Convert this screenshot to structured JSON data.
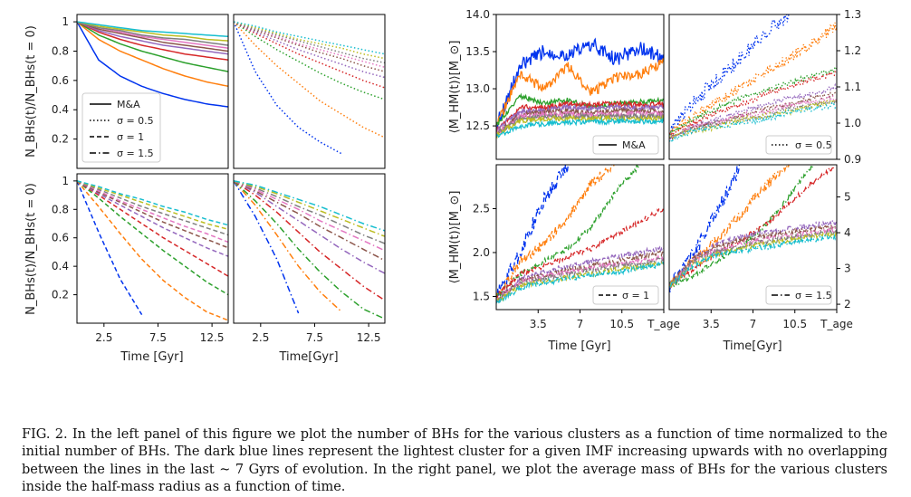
{
  "caption": "FIG. 2. In the left panel of this figure we plot the number of BHs for the various clusters as a function of time normalized to the initial number of BHs. The dark blue lines represent the lightest cluster for a given IMF increasing upwards with no overlapping between the lines in the last ~ 7 Gyrs of evolution. In the right panel, we plot the average mass of BHs for the various clusters inside the half-mass radius as a function of time.",
  "colors": [
    "#0033ee",
    "#ff7f0e",
    "#2ca02c",
    "#d62728",
    "#9467bd",
    "#8c564b",
    "#e377c2",
    "#7f7f7f",
    "#bcbd22",
    "#17becf"
  ],
  "legend": {
    "ma": "M&A",
    "s05": "σ = 0.5",
    "s1": "σ = 1",
    "s15": "σ = 1.5"
  },
  "left_labels": {
    "ylabel_top": "N_BHs(t)/N_BHs(t = 0)",
    "ylabel_bottom": "N_BHs(t)/N_BHs(t = 0)",
    "xlabel_left": "Time [Gyr]",
    "xlabel_right": "Time[Gyr]",
    "yticks": [
      "1",
      "0.8",
      "0.6",
      "0.4",
      "0.2"
    ],
    "xticks": [
      "2.5",
      "7.5",
      "12.5"
    ]
  },
  "right_labels": {
    "ylabel_top": "⟨M_HM(t)⟩[M_⊙]",
    "ylabel_bottom": "⟨M_HM(t)⟩[M_⊙]",
    "xlabel_left": "Time [Gyr]",
    "xlabel_right": "Time[Gyr]",
    "xticks": [
      "3.5",
      "7",
      "10.5",
      "T_age"
    ],
    "yticks_top_left": [
      "14.0",
      "13.5",
      "13.0",
      "12.5"
    ],
    "yticks_top_right": [
      "1.3",
      "1.2",
      "1.1",
      "1.0",
      "0.9"
    ],
    "yticks_bottom_left": [
      "2.5",
      "2.0",
      "1.5"
    ],
    "yticks_bottom_right": [
      "5",
      "4",
      "3",
      "2"
    ]
  },
  "chart_data": [
    {
      "type": "line",
      "panel": "left-top-left",
      "label": "M&A",
      "xlim": [
        0,
        14
      ],
      "ylim": [
        0,
        1.05
      ],
      "x": [
        0,
        2,
        4,
        6,
        8,
        10,
        12,
        14
      ],
      "series": [
        {
          "values": [
            1,
            0.74,
            0.63,
            0.56,
            0.51,
            0.47,
            0.44,
            0.42
          ]
        },
        {
          "values": [
            1,
            0.88,
            0.8,
            0.74,
            0.68,
            0.63,
            0.59,
            0.56
          ]
        },
        {
          "values": [
            1,
            0.91,
            0.85,
            0.8,
            0.76,
            0.72,
            0.69,
            0.66
          ]
        },
        {
          "values": [
            1,
            0.93,
            0.88,
            0.84,
            0.81,
            0.78,
            0.76,
            0.74
          ]
        },
        {
          "values": [
            1,
            0.94,
            0.9,
            0.87,
            0.84,
            0.82,
            0.8,
            0.78
          ]
        },
        {
          "values": [
            1,
            0.95,
            0.92,
            0.89,
            0.86,
            0.84,
            0.82,
            0.8
          ]
        },
        {
          "values": [
            1,
            0.96,
            0.93,
            0.9,
            0.88,
            0.86,
            0.84,
            0.82
          ]
        },
        {
          "values": [
            1,
            0.96,
            0.94,
            0.91,
            0.89,
            0.88,
            0.86,
            0.84
          ]
        },
        {
          "values": [
            1,
            0.97,
            0.95,
            0.93,
            0.91,
            0.9,
            0.88,
            0.87
          ]
        },
        {
          "values": [
            1,
            0.98,
            0.96,
            0.94,
            0.93,
            0.92,
            0.91,
            0.9
          ]
        }
      ]
    },
    {
      "type": "line",
      "panel": "left-top-right",
      "label": "σ = 0.5",
      "xlim": [
        0,
        14
      ],
      "ylim": [
        0,
        1.05
      ],
      "x": [
        0,
        2,
        4,
        6,
        8,
        10,
        12,
        14
      ],
      "series": [
        {
          "values": [
            1,
            0.66,
            0.43,
            0.28,
            0.18,
            0.1,
            null,
            null
          ]
        },
        {
          "values": [
            1,
            0.84,
            0.7,
            0.58,
            0.46,
            0.37,
            0.28,
            0.21
          ]
        },
        {
          "values": [
            1,
            0.9,
            0.81,
            0.73,
            0.65,
            0.58,
            0.52,
            0.47
          ]
        },
        {
          "values": [
            1,
            0.92,
            0.85,
            0.78,
            0.72,
            0.66,
            0.6,
            0.55
          ]
        },
        {
          "values": [
            1,
            0.93,
            0.87,
            0.81,
            0.76,
            0.71,
            0.66,
            0.62
          ]
        },
        {
          "values": [
            1,
            0.94,
            0.89,
            0.84,
            0.79,
            0.75,
            0.7,
            0.66
          ]
        },
        {
          "values": [
            1,
            0.95,
            0.9,
            0.85,
            0.81,
            0.77,
            0.73,
            0.69
          ]
        },
        {
          "values": [
            1,
            0.95,
            0.91,
            0.87,
            0.83,
            0.79,
            0.75,
            0.72
          ]
        },
        {
          "values": [
            1,
            0.96,
            0.92,
            0.88,
            0.85,
            0.82,
            0.78,
            0.75
          ]
        },
        {
          "values": [
            1,
            0.97,
            0.93,
            0.9,
            0.87,
            0.84,
            0.81,
            0.78
          ]
        }
      ]
    },
    {
      "type": "line",
      "panel": "left-bottom-left",
      "label": "σ = 1",
      "xlim": [
        0,
        14
      ],
      "ylim": [
        0,
        1.05
      ],
      "x": [
        0,
        2,
        4,
        6,
        8,
        10,
        12,
        14
      ],
      "series": [
        {
          "values": [
            1,
            0.64,
            0.31,
            0.06,
            null,
            null,
            null,
            null
          ]
        },
        {
          "values": [
            1,
            0.82,
            0.63,
            0.45,
            0.3,
            0.18,
            0.08,
            0.02
          ]
        },
        {
          "values": [
            1,
            0.88,
            0.75,
            0.63,
            0.51,
            0.4,
            0.29,
            0.2
          ]
        },
        {
          "values": [
            1,
            0.9,
            0.8,
            0.7,
            0.6,
            0.51,
            0.42,
            0.33
          ]
        },
        {
          "values": [
            1,
            0.91,
            0.83,
            0.75,
            0.67,
            0.6,
            0.53,
            0.47
          ]
        },
        {
          "values": [
            1,
            0.92,
            0.85,
            0.78,
            0.71,
            0.65,
            0.59,
            0.53
          ]
        },
        {
          "values": [
            1,
            0.93,
            0.86,
            0.8,
            0.74,
            0.68,
            0.63,
            0.57
          ]
        },
        {
          "values": [
            1,
            0.94,
            0.88,
            0.82,
            0.77,
            0.72,
            0.67,
            0.62
          ]
        },
        {
          "values": [
            1,
            0.95,
            0.9,
            0.85,
            0.8,
            0.75,
            0.7,
            0.66
          ]
        },
        {
          "values": [
            1,
            0.96,
            0.91,
            0.87,
            0.82,
            0.78,
            0.73,
            0.69
          ]
        }
      ]
    },
    {
      "type": "line",
      "panel": "left-bottom-right",
      "label": "σ = 1.5",
      "xlim": [
        0,
        14
      ],
      "ylim": [
        0,
        1.05
      ],
      "x": [
        0,
        2,
        4,
        6,
        8,
        10,
        12,
        14
      ],
      "series": [
        {
          "values": [
            1,
            0.75,
            0.45,
            0.07,
            null,
            null,
            null,
            null
          ]
        },
        {
          "values": [
            1,
            0.83,
            0.62,
            0.4,
            0.22,
            0.08,
            null,
            null
          ]
        },
        {
          "values": [
            1,
            0.86,
            0.7,
            0.52,
            0.36,
            0.22,
            0.1,
            0.03
          ]
        },
        {
          "values": [
            1,
            0.9,
            0.78,
            0.64,
            0.5,
            0.38,
            0.26,
            0.16
          ]
        },
        {
          "values": [
            1,
            0.92,
            0.82,
            0.72,
            0.62,
            0.52,
            0.43,
            0.35
          ]
        },
        {
          "values": [
            1,
            0.93,
            0.85,
            0.77,
            0.68,
            0.6,
            0.52,
            0.44
          ]
        },
        {
          "values": [
            1,
            0.94,
            0.87,
            0.8,
            0.72,
            0.65,
            0.58,
            0.51
          ]
        },
        {
          "values": [
            1,
            0.95,
            0.89,
            0.82,
            0.76,
            0.69,
            0.62,
            0.56
          ]
        },
        {
          "values": [
            1,
            0.96,
            0.91,
            0.85,
            0.79,
            0.73,
            0.67,
            0.61
          ]
        },
        {
          "values": [
            1,
            0.97,
            0.92,
            0.87,
            0.82,
            0.76,
            0.7,
            0.65
          ]
        }
      ]
    },
    {
      "type": "line",
      "panel": "right-top-left",
      "label": "M&A",
      "xlim": [
        0,
        14
      ],
      "ylim": [
        12.05,
        14.0
      ],
      "x": [
        0,
        2,
        4,
        6,
        8,
        10,
        12,
        14
      ],
      "series": [
        {
          "values": [
            12.5,
            13.3,
            13.5,
            13.45,
            13.6,
            13.4,
            13.55,
            13.4
          ]
        },
        {
          "values": [
            12.5,
            13.2,
            13.0,
            13.3,
            12.95,
            13.15,
            13.2,
            13.35
          ]
        },
        {
          "values": [
            12.5,
            12.9,
            12.8,
            12.85,
            12.75,
            12.8,
            12.82,
            12.85
          ]
        },
        {
          "values": [
            12.45,
            12.75,
            12.75,
            12.8,
            12.78,
            12.8,
            12.78,
            12.8
          ]
        },
        {
          "values": [
            12.45,
            12.7,
            12.72,
            12.75,
            12.73,
            12.75,
            12.74,
            12.75
          ]
        },
        {
          "values": [
            12.4,
            12.65,
            12.68,
            12.7,
            12.68,
            12.7,
            12.7,
            12.7
          ]
        },
        {
          "values": [
            12.4,
            12.62,
            12.65,
            12.66,
            12.65,
            12.66,
            12.66,
            12.66
          ]
        },
        {
          "values": [
            12.4,
            12.6,
            12.62,
            12.63,
            12.62,
            12.63,
            12.63,
            12.63
          ]
        },
        {
          "values": [
            12.38,
            12.57,
            12.6,
            12.6,
            12.6,
            12.6,
            12.6,
            12.6
          ]
        },
        {
          "values": [
            12.35,
            12.5,
            12.53,
            12.55,
            12.55,
            12.56,
            12.56,
            12.56
          ]
        }
      ]
    },
    {
      "type": "line",
      "panel": "right-top-right",
      "label": "σ = 0.5",
      "xlim": [
        0,
        14
      ],
      "ylim": [
        0.9,
        1.3
      ],
      "x": [
        0,
        2,
        4,
        6,
        8,
        10,
        12,
        14
      ],
      "series": [
        {
          "values": [
            0.97,
            1.06,
            1.12,
            1.18,
            1.25,
            1.3,
            null,
            null
          ]
        },
        {
          "values": [
            0.97,
            1.02,
            1.06,
            1.1,
            1.14,
            1.18,
            1.22,
            1.27
          ]
        },
        {
          "values": [
            0.97,
            1.01,
            1.04,
            1.07,
            1.09,
            1.11,
            1.13,
            1.15
          ]
        },
        {
          "values": [
            0.97,
            1.0,
            1.03,
            1.05,
            1.08,
            1.1,
            1.12,
            1.14
          ]
        },
        {
          "values": [
            0.96,
            0.99,
            1.01,
            1.03,
            1.05,
            1.07,
            1.08,
            1.1
          ]
        },
        {
          "values": [
            0.96,
            0.99,
            1.0,
            1.02,
            1.04,
            1.05,
            1.07,
            1.08
          ]
        },
        {
          "values": [
            0.96,
            0.99,
            1.0,
            1.02,
            1.03,
            1.05,
            1.06,
            1.07
          ]
        },
        {
          "values": [
            0.96,
            0.98,
            1.0,
            1.01,
            1.02,
            1.04,
            1.05,
            1.06
          ]
        },
        {
          "values": [
            0.96,
            0.98,
            0.99,
            1.01,
            1.02,
            1.03,
            1.05,
            1.06
          ]
        },
        {
          "values": [
            0.95,
            0.98,
            0.99,
            1.0,
            1.01,
            1.03,
            1.04,
            1.05
          ]
        }
      ]
    },
    {
      "type": "line",
      "panel": "right-bottom-left",
      "label": "σ = 1",
      "xlim": [
        0,
        14
      ],
      "ylim": [
        1.35,
        3.0
      ],
      "x": [
        0,
        2,
        4,
        6,
        8,
        10,
        12,
        14
      ],
      "series": [
        {
          "values": [
            1.5,
            2.0,
            2.6,
            3.0,
            null,
            null,
            null,
            null
          ]
        },
        {
          "values": [
            1.5,
            1.9,
            2.1,
            2.4,
            2.8,
            3.0,
            null,
            null
          ]
        },
        {
          "values": [
            1.5,
            1.75,
            1.9,
            2.05,
            2.3,
            2.7,
            3.0,
            null
          ]
        },
        {
          "values": [
            1.5,
            1.75,
            1.85,
            1.95,
            2.05,
            2.2,
            2.35,
            2.5
          ]
        },
        {
          "values": [
            1.45,
            1.7,
            1.78,
            1.85,
            1.9,
            1.95,
            2.0,
            2.05
          ]
        },
        {
          "values": [
            1.45,
            1.68,
            1.75,
            1.8,
            1.85,
            1.9,
            1.95,
            2.0
          ]
        },
        {
          "values": [
            1.45,
            1.66,
            1.72,
            1.78,
            1.82,
            1.86,
            1.9,
            1.95
          ]
        },
        {
          "values": [
            1.45,
            1.64,
            1.7,
            1.75,
            1.8,
            1.84,
            1.88,
            1.92
          ]
        },
        {
          "values": [
            1.44,
            1.62,
            1.68,
            1.72,
            1.76,
            1.8,
            1.84,
            1.88
          ]
        },
        {
          "values": [
            1.42,
            1.6,
            1.66,
            1.7,
            1.74,
            1.78,
            1.82,
            1.86
          ]
        }
      ]
    },
    {
      "type": "line",
      "panel": "right-bottom-right",
      "label": "σ = 1.5",
      "xlim": [
        0,
        14
      ],
      "ylim": [
        1.85,
        5.9
      ],
      "x": [
        0,
        2,
        4,
        6,
        8,
        10,
        12,
        14
      ],
      "series": [
        {
          "values": [
            2.5,
            3.4,
            4.6,
            5.9,
            null,
            null,
            null,
            null
          ]
        },
        {
          "values": [
            2.5,
            3.2,
            3.8,
            4.5,
            5.3,
            5.9,
            null,
            null
          ]
        },
        {
          "values": [
            2.5,
            2.8,
            3.2,
            3.6,
            4.2,
            5.0,
            5.9,
            null
          ]
        },
        {
          "values": [
            2.5,
            3.0,
            3.4,
            3.8,
            4.2,
            4.8,
            5.4,
            5.9
          ]
        },
        {
          "values": [
            2.5,
            3.3,
            3.7,
            3.9,
            4.0,
            4.1,
            4.2,
            4.3
          ]
        },
        {
          "values": [
            2.5,
            3.3,
            3.6,
            3.8,
            3.9,
            4.0,
            4.1,
            4.2
          ]
        },
        {
          "values": [
            2.5,
            3.2,
            3.5,
            3.7,
            3.8,
            3.9,
            4.0,
            4.1
          ]
        },
        {
          "values": [
            2.5,
            3.2,
            3.5,
            3.6,
            3.75,
            3.85,
            3.95,
            4.0
          ]
        },
        {
          "values": [
            2.5,
            3.1,
            3.4,
            3.55,
            3.7,
            3.8,
            3.9,
            3.95
          ]
        },
        {
          "values": [
            2.5,
            3.1,
            3.4,
            3.5,
            3.6,
            3.7,
            3.8,
            3.9
          ]
        }
      ]
    }
  ]
}
